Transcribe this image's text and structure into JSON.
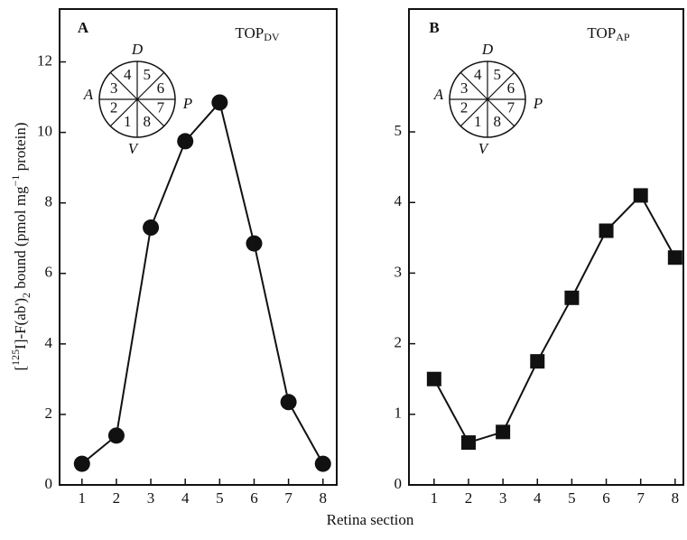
{
  "chart_data": [
    {
      "type": "line",
      "panel": "A",
      "label": "TOP",
      "label_sub": "DV",
      "marker": "circle",
      "color": "#111111",
      "ylabel_parts": [
        "[",
        "125",
        "I]-F(ab')",
        "2",
        " bound (pmol mg",
        "−1",
        " protein)"
      ],
      "x": [
        1,
        2,
        3,
        4,
        5,
        6,
        7,
        8
      ],
      "values": [
        0.6,
        1.4,
        7.3,
        9.75,
        10.85,
        6.85,
        2.35,
        0.6
      ],
      "xlim": [
        0.35,
        8.4
      ],
      "xticks": [
        1,
        2,
        3,
        4,
        5,
        6,
        7,
        8
      ],
      "ylim": [
        0,
        13.5
      ],
      "yticks": [
        0,
        2,
        4,
        6,
        8,
        10,
        12
      ],
      "inset": {
        "sectors": [
          "1",
          "2",
          "3",
          "4",
          "5",
          "6",
          "7",
          "8"
        ],
        "top": "D",
        "left": "A",
        "right": "P",
        "bottom": "V"
      }
    },
    {
      "type": "line",
      "panel": "B",
      "label": "TOP",
      "label_sub": "AP",
      "marker": "square",
      "color": "#111111",
      "x": [
        1,
        2,
        3,
        4,
        5,
        6,
        7,
        8
      ],
      "values": [
        1.5,
        0.6,
        0.75,
        1.75,
        2.65,
        3.6,
        4.1,
        3.22
      ],
      "xlim": [
        0.27,
        8.24
      ],
      "xticks": [
        1,
        2,
        3,
        4,
        5,
        6,
        7,
        8
      ],
      "ylim": [
        0,
        6.74
      ],
      "yticks": [
        0,
        1,
        2,
        3,
        4,
        5
      ],
      "inset": {
        "sectors": [
          "1",
          "2",
          "3",
          "4",
          "5",
          "6",
          "7",
          "8"
        ],
        "top": "D",
        "left": "A",
        "right": "P",
        "bottom": "V"
      }
    }
  ],
  "xlabel": "Retina section"
}
